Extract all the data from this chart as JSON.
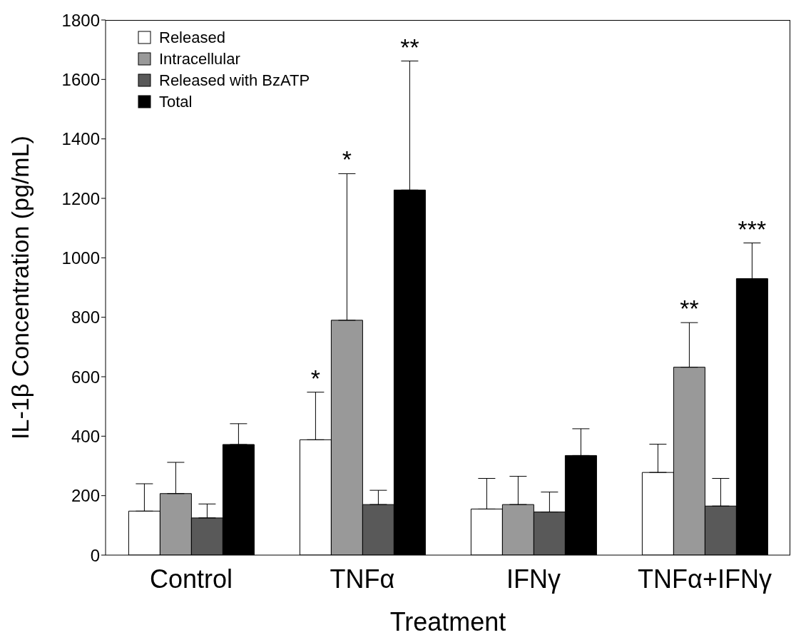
{
  "chart_data": {
    "type": "bar",
    "xlabel": "Treatment",
    "ylabel": "IL-1β Concentration (pg/mL)",
    "categories": [
      "Control",
      "TNFα",
      "IFNγ",
      "TNFα+IFNγ"
    ],
    "series": [
      {
        "name": "Released",
        "color": "#ffffff",
        "values": [
          148,
          388,
          155,
          278
        ],
        "errors": [
          [
            148,
            240
          ],
          [
            388,
            548
          ],
          [
            155,
            258
          ],
          [
            278,
            373
          ]
        ]
      },
      {
        "name": "Intracellular",
        "color": "#999999",
        "values": [
          207,
          790,
          170,
          632
        ],
        "errors": [
          [
            207,
            312
          ],
          [
            790,
            1283
          ],
          [
            170,
            265
          ],
          [
            632,
            782
          ]
        ]
      },
      {
        "name": "Released with BzATP",
        "color": "#595959",
        "values": [
          125,
          170,
          145,
          165
        ],
        "errors": [
          [
            125,
            172
          ],
          [
            170,
            218
          ],
          [
            145,
            212
          ],
          [
            165,
            258
          ]
        ]
      },
      {
        "name": "Total",
        "color": "#000000",
        "values": [
          372,
          1228,
          335,
          930
        ],
        "errors": [
          [
            372,
            442
          ],
          [
            1228,
            1662
          ],
          [
            335,
            425
          ],
          [
            930,
            1050
          ]
        ]
      }
    ],
    "annotations": [
      {
        "text": "*",
        "x": "TNFα",
        "y": 548
      },
      "*",
      "**",
      "**",
      "***"
    ],
    "ylim": [
      0,
      1800
    ],
    "yticks": [
      0,
      200,
      400,
      600,
      800,
      1000,
      1200,
      1400,
      1600,
      1800
    ],
    "grid": false,
    "legend": "top left"
  }
}
